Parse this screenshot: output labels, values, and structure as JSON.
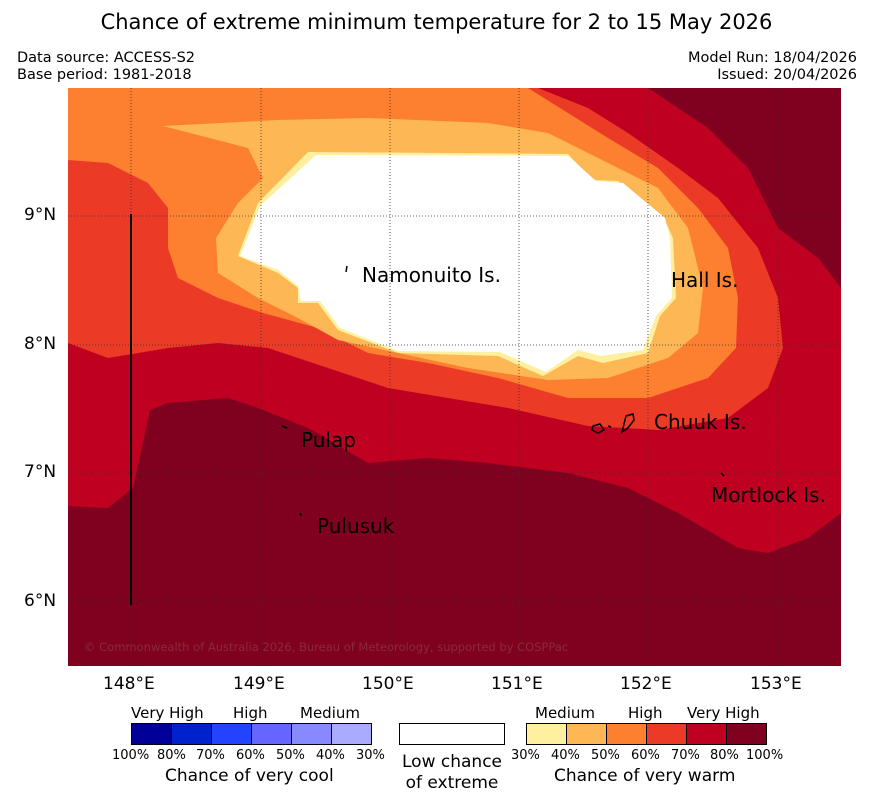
{
  "title": "Chance of extreme minimum temperature for 2 to 15 May 2026",
  "meta": {
    "data_source": "Data source: ACCESS-S2",
    "base_period": "Base period: 1981-2018",
    "model_run": "Model Run: 18/04/2026",
    "issued": "Issued: 20/04/2026"
  },
  "axes": {
    "lat_ticks": [
      "9°N",
      "8°N",
      "7°N",
      "6°N"
    ],
    "lon_ticks": [
      "148°E",
      "149°E",
      "150°E",
      "151°E",
      "152°E",
      "153°E"
    ]
  },
  "places": {
    "namonuito": "Namonuito Is.",
    "hall": "Hall Is.",
    "chuuk": "Chuuk Is.",
    "pulap": "Pulap",
    "mortlock": "Mortlock Is.",
    "pulusuk": "Pulusuk"
  },
  "copyright": "© Commonwealth of Australia 2026, Bureau of Meteorology, supported by COSPPac",
  "legend": {
    "cool": {
      "headers": [
        "Very High",
        "High",
        "Medium"
      ],
      "colors": [
        "#000099",
        "#0022cc",
        "#2244ff",
        "#6666ff",
        "#8888ff",
        "#aaaaff"
      ],
      "ticks": [
        "100%",
        "80%",
        "70%",
        "60%",
        "50%",
        "40%",
        "30%"
      ],
      "caption": "Chance of very cool"
    },
    "neutral": {
      "caption_line1": "Low chance",
      "caption_line2": "of extreme",
      "color": "#ffffff"
    },
    "warm": {
      "headers": [
        "Medium",
        "High",
        "Very High"
      ],
      "colors": [
        "#fff0a0",
        "#fdb855",
        "#fd7f30",
        "#eb3a25",
        "#bf0020",
        "#800020"
      ],
      "ticks": [
        "30%",
        "40%",
        "50%",
        "60%",
        "70%",
        "80%",
        "100%"
      ],
      "caption": "Chance of very warm"
    }
  }
}
